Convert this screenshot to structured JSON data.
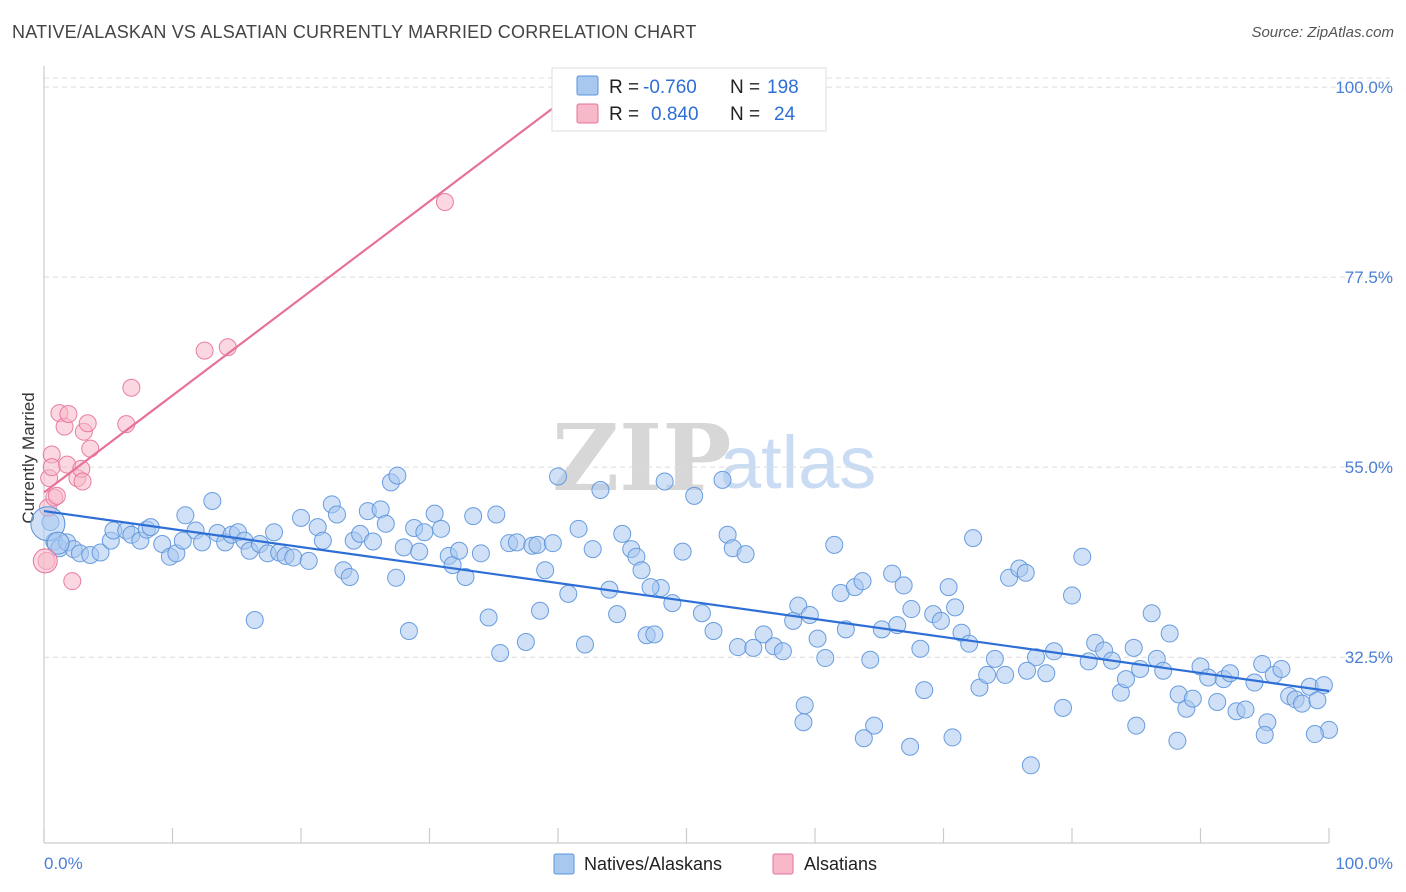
{
  "header": {
    "title": "NATIVE/ALASKAN VS ALSATIAN CURRENTLY MARRIED CORRELATION CHART",
    "source": "Source: ZipAtlas.com"
  },
  "watermark": {
    "zip": "ZIP",
    "atlas": "atlas"
  },
  "legend_top": {
    "rows": [
      {
        "r_label": "R =",
        "r_value": "-0.760",
        "n_label": "N =",
        "n_value": "198",
        "color": "#a9c8f0"
      },
      {
        "r_label": "R =",
        "r_value": "0.840",
        "n_label": "N =",
        "n_value": "24",
        "color": "#f7b8c9"
      }
    ]
  },
  "legend_bottom": {
    "items": [
      {
        "label": "Natives/Alaskans",
        "color": "#a9c8f0"
      },
      {
        "label": "Alsatians",
        "color": "#f7b8c9"
      }
    ]
  },
  "chart_data": {
    "type": "scatter",
    "title": "NATIVE/ALASKAN VS ALSATIAN CURRENTLY MARRIED CORRELATION CHART",
    "xlabel": "",
    "ylabel": "Currently Married",
    "xlim": [
      0,
      100
    ],
    "ylim": [
      10.5,
      102.5
    ],
    "x_tick_labels": [
      "0.0%",
      "100.0%"
    ],
    "y_tick_labels": [
      "32.5%",
      "55.0%",
      "77.5%",
      "100.0%"
    ],
    "y_ticks": [
      32.5,
      55.0,
      77.5,
      100.0
    ],
    "grid": "horizontal dashed",
    "legend_placement": "top-center",
    "series": [
      {
        "name": "Natives/Alaskans",
        "color": "#5b93dc",
        "fill": "#a9c8f0",
        "r": -0.76,
        "n": 198,
        "trend": {
          "x": [
            0,
            100
          ],
          "y": [
            49.8,
            28.5
          ]
        },
        "points": [
          [
            0.5,
            48.5
          ],
          [
            0.8,
            46.2
          ],
          [
            1.2,
            45.4
          ],
          [
            1.8,
            46.1
          ],
          [
            2.3,
            45.3
          ],
          [
            2.8,
            44.8
          ],
          [
            3.6,
            44.6
          ],
          [
            4.4,
            44.9
          ],
          [
            5.2,
            46.3
          ],
          [
            5.4,
            47.5
          ],
          [
            6.4,
            47.5
          ],
          [
            6.8,
            47.0
          ],
          [
            7.5,
            46.3
          ],
          [
            8.0,
            47.6
          ],
          [
            8.3,
            47.9
          ],
          [
            9.2,
            45.9
          ],
          [
            9.8,
            44.4
          ],
          [
            10.3,
            44.8
          ],
          [
            10.8,
            46.3
          ],
          [
            11.0,
            49.3
          ],
          [
            11.8,
            47.5
          ],
          [
            12.3,
            46.1
          ],
          [
            13.1,
            51.0
          ],
          [
            13.5,
            47.2
          ],
          [
            14.1,
            46.1
          ],
          [
            14.6,
            47.0
          ],
          [
            15.1,
            47.3
          ],
          [
            15.6,
            46.3
          ],
          [
            16.0,
            45.1
          ],
          [
            16.4,
            36.9
          ],
          [
            16.8,
            45.9
          ],
          [
            17.4,
            44.8
          ],
          [
            17.9,
            47.3
          ],
          [
            18.3,
            44.9
          ],
          [
            18.8,
            44.5
          ],
          [
            19.4,
            44.3
          ],
          [
            20.0,
            49.0
          ],
          [
            20.6,
            43.9
          ],
          [
            21.3,
            47.9
          ],
          [
            21.7,
            46.3
          ],
          [
            22.4,
            50.6
          ],
          [
            22.8,
            49.4
          ],
          [
            23.3,
            42.8
          ],
          [
            23.8,
            42.0
          ],
          [
            24.1,
            46.3
          ],
          [
            24.6,
            47.1
          ],
          [
            25.2,
            49.8
          ],
          [
            25.6,
            46.2
          ],
          [
            26.2,
            50.0
          ],
          [
            26.6,
            48.3
          ],
          [
            27.0,
            53.2
          ],
          [
            27.5,
            54.0
          ],
          [
            28.0,
            45.5
          ],
          [
            28.4,
            35.6
          ],
          [
            28.8,
            47.8
          ],
          [
            29.2,
            45.0
          ],
          [
            29.6,
            47.3
          ],
          [
            30.4,
            49.5
          ],
          [
            30.9,
            47.7
          ],
          [
            31.5,
            44.5
          ],
          [
            31.8,
            43.4
          ],
          [
            32.3,
            45.1
          ],
          [
            32.8,
            42.0
          ],
          [
            33.4,
            49.2
          ],
          [
            34.0,
            44.8
          ],
          [
            34.6,
            37.2
          ],
          [
            35.2,
            49.4
          ],
          [
            35.5,
            33.0
          ],
          [
            36.2,
            46.0
          ],
          [
            36.8,
            46.1
          ],
          [
            37.5,
            34.3
          ],
          [
            38.0,
            45.7
          ],
          [
            38.4,
            45.8
          ],
          [
            39.0,
            42.8
          ],
          [
            39.6,
            46.0
          ],
          [
            40.0,
            53.9
          ],
          [
            40.8,
            40.0
          ],
          [
            41.6,
            47.7
          ],
          [
            42.1,
            34.0
          ],
          [
            42.7,
            45.3
          ],
          [
            43.3,
            52.3
          ],
          [
            44.0,
            40.5
          ],
          [
            44.6,
            37.6
          ],
          [
            45.0,
            47.1
          ],
          [
            45.7,
            45.3
          ],
          [
            46.1,
            44.4
          ],
          [
            46.5,
            42.8
          ],
          [
            46.9,
            35.1
          ],
          [
            47.5,
            35.2
          ],
          [
            48.0,
            40.7
          ],
          [
            48.3,
            53.3
          ],
          [
            48.9,
            38.9
          ],
          [
            49.7,
            45.0
          ],
          [
            50.6,
            51.6
          ],
          [
            51.2,
            37.7
          ],
          [
            52.1,
            35.6
          ],
          [
            52.8,
            53.5
          ],
          [
            53.2,
            47.0
          ],
          [
            53.6,
            45.4
          ],
          [
            54.0,
            33.7
          ],
          [
            54.6,
            44.7
          ],
          [
            55.2,
            33.6
          ],
          [
            56.0,
            35.2
          ],
          [
            56.8,
            33.8
          ],
          [
            57.5,
            33.2
          ],
          [
            58.3,
            36.8
          ],
          [
            58.7,
            38.6
          ],
          [
            59.1,
            24.8
          ],
          [
            59.6,
            37.5
          ],
          [
            60.2,
            34.7
          ],
          [
            60.8,
            32.4
          ],
          [
            61.5,
            45.8
          ],
          [
            62.0,
            40.1
          ],
          [
            62.4,
            35.8
          ],
          [
            63.1,
            40.8
          ],
          [
            63.7,
            41.5
          ],
          [
            64.3,
            32.2
          ],
          [
            64.6,
            24.4
          ],
          [
            65.2,
            35.8
          ],
          [
            66.0,
            42.4
          ],
          [
            66.4,
            36.3
          ],
          [
            66.9,
            41.0
          ],
          [
            67.5,
            38.2
          ],
          [
            68.2,
            33.5
          ],
          [
            68.5,
            28.6
          ],
          [
            69.2,
            37.6
          ],
          [
            69.8,
            36.8
          ],
          [
            70.4,
            40.8
          ],
          [
            70.9,
            38.4
          ],
          [
            71.4,
            35.4
          ],
          [
            72.3,
            46.6
          ],
          [
            72.8,
            28.9
          ],
          [
            73.4,
            30.4
          ],
          [
            74.0,
            32.3
          ],
          [
            74.8,
            30.4
          ],
          [
            75.1,
            41.9
          ],
          [
            75.9,
            43.0
          ],
          [
            76.4,
            42.5
          ],
          [
            77.2,
            32.5
          ],
          [
            78.0,
            30.6
          ],
          [
            78.6,
            33.2
          ],
          [
            79.3,
            26.5
          ],
          [
            80.0,
            39.8
          ],
          [
            80.8,
            44.4
          ],
          [
            81.3,
            32.0
          ],
          [
            81.8,
            34.2
          ],
          [
            82.5,
            33.3
          ],
          [
            83.1,
            32.1
          ],
          [
            83.8,
            28.3
          ],
          [
            84.2,
            29.9
          ],
          [
            84.8,
            33.6
          ],
          [
            85.3,
            31.1
          ],
          [
            86.2,
            37.7
          ],
          [
            86.6,
            32.3
          ],
          [
            87.1,
            30.9
          ],
          [
            87.6,
            35.3
          ],
          [
            88.3,
            28.1
          ],
          [
            88.9,
            26.4
          ],
          [
            89.4,
            27.6
          ],
          [
            90.0,
            31.4
          ],
          [
            90.6,
            30.1
          ],
          [
            91.3,
            27.2
          ],
          [
            91.8,
            29.9
          ],
          [
            92.3,
            30.6
          ],
          [
            92.8,
            26.1
          ],
          [
            93.5,
            26.3
          ],
          [
            94.2,
            29.5
          ],
          [
            94.8,
            31.7
          ],
          [
            95.2,
            24.8
          ],
          [
            95.7,
            30.4
          ],
          [
            96.3,
            31.1
          ],
          [
            96.9,
            27.9
          ],
          [
            97.4,
            27.5
          ],
          [
            97.9,
            27.0
          ],
          [
            98.5,
            29.0
          ],
          [
            99.1,
            27.4
          ],
          [
            99.6,
            29.2
          ],
          [
            100.0,
            23.9
          ],
          [
            85.0,
            24.4
          ],
          [
            67.4,
            21.9
          ],
          [
            76.8,
            19.7
          ],
          [
            70.7,
            23.0
          ],
          [
            63.8,
            22.9
          ],
          [
            88.2,
            22.6
          ],
          [
            98.9,
            23.4
          ],
          [
            95.0,
            23.3
          ],
          [
            59.2,
            26.8
          ],
          [
            76.5,
            30.9
          ],
          [
            72.0,
            34.1
          ],
          [
            47.2,
            40.8
          ],
          [
            38.6,
            38.0
          ],
          [
            27.4,
            41.9
          ]
        ]
      },
      {
        "name": "Alsatians",
        "color": "#e8719a",
        "fill": "#f7b8c9",
        "r": 0.84,
        "n": 24,
        "trend": {
          "x": [
            0,
            40.2
          ],
          "y": [
            52.0,
            98.2
          ]
        },
        "points": [
          [
            0.2,
            43.9
          ],
          [
            0.3,
            50.2
          ],
          [
            0.4,
            53.7
          ],
          [
            0.6,
            56.5
          ],
          [
            0.6,
            55.0
          ],
          [
            0.8,
            51.4
          ],
          [
            1.0,
            51.6
          ],
          [
            1.2,
            61.4
          ],
          [
            1.6,
            59.8
          ],
          [
            1.8,
            55.3
          ],
          [
            1.9,
            61.3
          ],
          [
            2.2,
            41.5
          ],
          [
            2.6,
            53.7
          ],
          [
            2.9,
            54.8
          ],
          [
            3.0,
            53.3
          ],
          [
            3.1,
            59.2
          ],
          [
            3.4,
            60.2
          ],
          [
            3.6,
            57.2
          ],
          [
            6.4,
            60.1
          ],
          [
            6.8,
            64.4
          ],
          [
            12.5,
            68.8
          ],
          [
            14.3,
            69.2
          ],
          [
            31.2,
            86.4
          ],
          [
            40.2,
            98.1
          ]
        ]
      }
    ]
  }
}
